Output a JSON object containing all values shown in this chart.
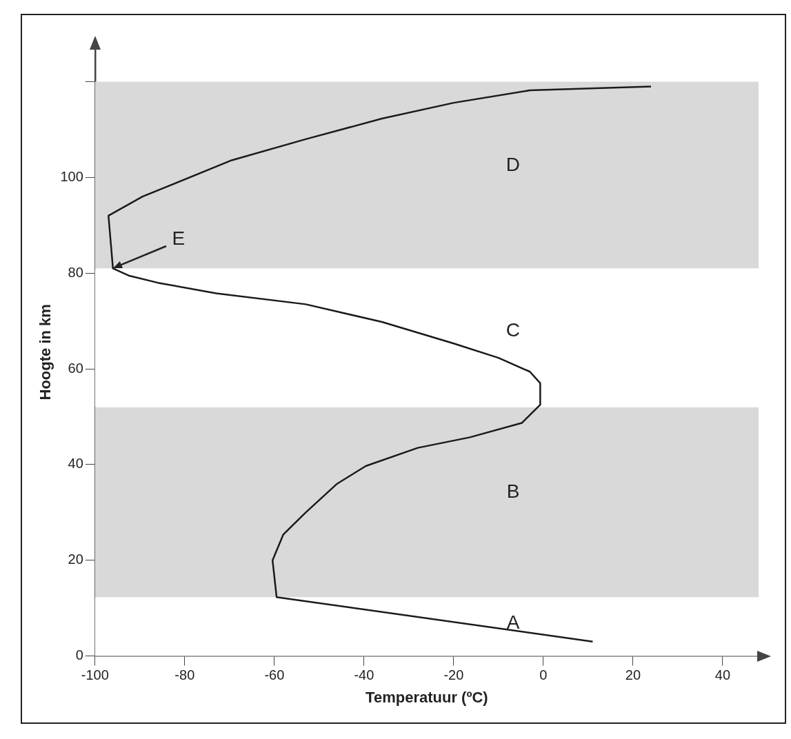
{
  "chart_data": {
    "type": "line",
    "xlabel": "Temperatuur (ºC)",
    "ylabel": "Hoogte in km",
    "xlim": [
      -100,
      48
    ],
    "ylim": [
      0,
      127
    ],
    "xticks": [
      -100,
      -80,
      -60,
      -40,
      -20,
      0,
      20,
      40
    ],
    "yticks": [
      0,
      20,
      40,
      60,
      80,
      100,
      {
        "value": 120,
        "label": null
      }
    ],
    "grid": false,
    "legend": false,
    "marker": "none",
    "line_style": "solid",
    "series": [
      {
        "color": "#1a1a1a",
        "x": [
          11,
          -59.5,
          -60.4,
          -58,
          -53,
          -46,
          -39.6,
          -28,
          -16.4,
          -4.8,
          -0.7,
          -0.7,
          -3,
          -10,
          -20,
          -36,
          -53,
          -73,
          -86,
          -92.5,
          -96,
          -97,
          -89.4,
          -69.5,
          -53,
          -36,
          -20,
          -3,
          24
        ],
        "values": [
          3,
          12.3,
          20,
          25.4,
          30,
          36,
          39.7,
          43.5,
          45.7,
          48.7,
          52.5,
          57,
          59.4,
          62.3,
          65.3,
          69.8,
          73.5,
          75.8,
          78,
          79.5,
          81,
          92,
          96,
          103.6,
          108,
          112.3,
          115.6,
          118.2,
          119
        ]
      }
    ],
    "bands": [
      {
        "axis": "y",
        "from": 0,
        "to": 12.3,
        "color": "#ffffff",
        "label": "A"
      },
      {
        "axis": "y",
        "from": 12.3,
        "to": 52,
        "color": "#d9d9d9",
        "label": "B"
      },
      {
        "axis": "y",
        "from": 52,
        "to": 81,
        "color": "#ffffff",
        "label": "C"
      },
      {
        "axis": "y",
        "from": 81,
        "to": 120,
        "color": "#d9d9d9",
        "label": "D"
      }
    ],
    "annotations": [
      {
        "text": "E",
        "x": -96,
        "y": 81
      }
    ]
  }
}
